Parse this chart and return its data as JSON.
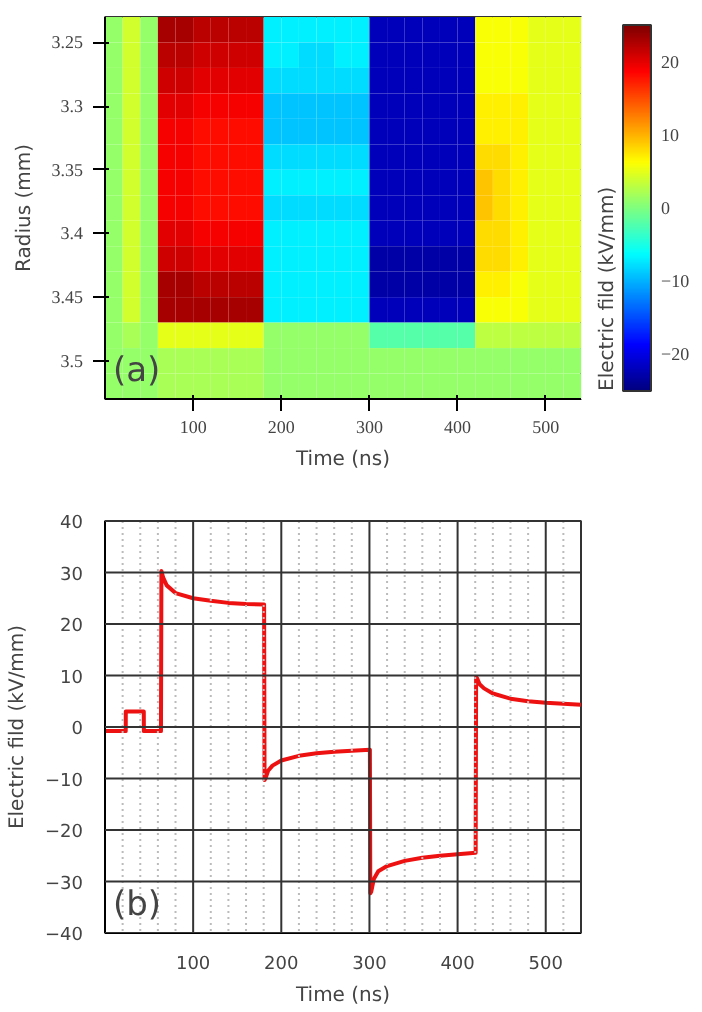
{
  "chart_data": [
    {
      "type": "heatmap",
      "xlabel": "Time (ns)",
      "ylabel": "Radius (mm)",
      "clabel": "Electric fild (kV/mm)",
      "x": [
        10,
        30,
        50,
        70,
        90,
        110,
        130,
        150,
        170,
        190,
        210,
        230,
        250,
        270,
        290,
        310,
        330,
        350,
        370,
        390,
        410,
        430,
        450,
        470,
        490,
        510,
        530
      ],
      "y": [
        3.24,
        3.26,
        3.28,
        3.3,
        3.32,
        3.34,
        3.36,
        3.38,
        3.4,
        3.42,
        3.44,
        3.46,
        3.48,
        3.5,
        3.52
      ],
      "xlim": [
        0,
        540
      ],
      "ylim": [
        3.53,
        3.23
      ],
      "xticks": [
        100,
        200,
        300,
        400,
        500
      ],
      "yticks": [
        3.25,
        3.3,
        3.35,
        3.4,
        3.45,
        3.5
      ],
      "clim": [
        -25,
        25
      ],
      "cticks": [
        -20,
        -10,
        0,
        10,
        20
      ],
      "cells": [
        [
          1,
          4,
          1,
          23,
          23,
          22,
          22,
          22,
          22,
          -7,
          -7,
          -7,
          -7,
          -7,
          -7,
          -22,
          -22,
          -22,
          -22,
          -22,
          -22,
          6,
          6,
          6,
          5,
          5,
          5
        ],
        [
          1,
          4,
          1,
          22,
          22,
          21,
          21,
          21,
          21,
          -7,
          -7,
          -8,
          -8,
          -7,
          -7,
          -22,
          -22,
          -22,
          -22,
          -22,
          -22,
          6,
          6,
          6,
          5,
          5,
          5
        ],
        [
          1,
          4,
          1,
          21,
          21,
          20,
          20,
          20,
          20,
          -8,
          -8,
          -8,
          -8,
          -8,
          -8,
          -22,
          -22,
          -22,
          -22,
          -22,
          -22,
          6,
          6,
          6,
          5,
          5,
          5
        ],
        [
          1,
          4,
          1,
          20,
          20,
          19,
          19,
          19,
          19,
          -9,
          -9,
          -9,
          -9,
          -9,
          -9,
          -22,
          -22,
          -22,
          -22,
          -22,
          -22,
          7,
          7,
          7,
          5,
          5,
          5
        ],
        [
          1,
          4,
          1,
          19,
          19,
          18,
          18,
          18,
          18,
          -9,
          -9,
          -9,
          -9,
          -9,
          -9,
          -22,
          -22,
          -22,
          -22,
          -22,
          -22,
          7,
          7,
          7,
          5,
          5,
          5
        ],
        [
          1,
          4,
          1,
          19,
          19,
          18,
          18,
          18,
          18,
          -8,
          -8,
          -8,
          -8,
          -8,
          -8,
          -22,
          -22,
          -22,
          -22,
          -22,
          -22,
          8,
          8,
          7,
          5,
          5,
          5
        ],
        [
          1,
          4,
          1,
          19,
          19,
          18,
          18,
          18,
          18,
          -7,
          -7,
          -7,
          -7,
          -7,
          -7,
          -22,
          -22,
          -22,
          -22,
          -22,
          -22,
          9,
          8,
          7,
          5,
          5,
          5
        ],
        [
          1,
          4,
          1,
          19,
          19,
          18,
          18,
          18,
          18,
          -8,
          -8,
          -8,
          -8,
          -8,
          -8,
          -22,
          -22,
          -22,
          -22,
          -22,
          -22,
          9,
          8,
          7,
          5,
          5,
          5
        ],
        [
          1,
          4,
          1,
          20,
          20,
          19,
          19,
          19,
          19,
          -7,
          -7,
          -7,
          -7,
          -7,
          -7,
          -22,
          -22,
          -22,
          -22,
          -22,
          -22,
          8,
          8,
          7,
          5,
          5,
          5
        ],
        [
          1,
          4,
          1,
          21,
          21,
          20,
          20,
          20,
          20,
          -7,
          -7,
          -7,
          -7,
          -7,
          -7,
          -23,
          -23,
          -23,
          -23,
          -23,
          -23,
          8,
          8,
          7,
          5,
          5,
          5
        ],
        [
          1,
          4,
          1,
          23,
          23,
          22,
          22,
          22,
          22,
          -7,
          -7,
          -7,
          -7,
          -7,
          -7,
          -23,
          -23,
          -23,
          -23,
          -23,
          -23,
          7,
          7,
          6,
          5,
          5,
          5
        ],
        [
          1,
          4,
          1,
          23,
          23,
          23,
          23,
          23,
          23,
          -7,
          -7,
          -7,
          -7,
          -7,
          -7,
          -22,
          -22,
          -22,
          -22,
          -22,
          -22,
          6,
          6,
          6,
          5,
          5,
          5
        ],
        [
          1,
          2,
          1,
          5,
          5,
          5,
          5,
          5,
          5,
          1,
          1,
          1,
          1,
          1,
          1,
          -2,
          -2,
          -2,
          -2,
          -2,
          -2,
          3,
          3,
          3,
          3,
          3,
          3
        ],
        [
          1,
          1,
          1,
          2,
          2,
          2,
          2,
          2,
          2,
          1,
          1,
          1,
          1,
          1,
          1,
          1,
          1,
          1,
          1,
          1,
          1,
          1,
          1,
          1,
          1,
          1,
          1
        ],
        [
          1,
          1,
          1,
          2,
          2,
          2,
          2,
          2,
          2,
          1,
          1,
          1,
          1,
          1,
          1,
          1,
          1,
          1,
          1,
          1,
          1,
          1,
          1,
          1,
          1,
          1,
          1
        ]
      ],
      "annotations": [
        "(a)"
      ]
    },
    {
      "type": "line",
      "xlabel": "Time (ns)",
      "ylabel": "Electric fild (kV/mm)",
      "xlim": [
        0,
        540
      ],
      "ylim": [
        -40,
        40
      ],
      "grid": true,
      "xticks": [
        {
          "value": 20,
          "label": null
        },
        {
          "value": 40,
          "label": null
        },
        {
          "value": 60,
          "label": null
        },
        {
          "value": 80,
          "label": null
        },
        100,
        {
          "value": 120,
          "label": null
        },
        {
          "value": 140,
          "label": null
        },
        {
          "value": 160,
          "label": null
        },
        {
          "value": 180,
          "label": null
        },
        200,
        {
          "value": 220,
          "label": null
        },
        {
          "value": 240,
          "label": null
        },
        {
          "value": 260,
          "label": null
        },
        {
          "value": 280,
          "label": null
        },
        300,
        {
          "value": 320,
          "label": null
        },
        {
          "value": 340,
          "label": null
        },
        {
          "value": 360,
          "label": null
        },
        {
          "value": 380,
          "label": null
        },
        400,
        {
          "value": 420,
          "label": null
        },
        {
          "value": 440,
          "label": null
        },
        {
          "value": 460,
          "label": null
        },
        {
          "value": 480,
          "label": null
        },
        500,
        {
          "value": 520,
          "label": null
        }
      ],
      "yticks": [
        -40,
        -30,
        -20,
        -10,
        0,
        10,
        20,
        30,
        40
      ],
      "series": [
        {
          "color": "#ee1111",
          "x": [
            0,
            23.5,
            23.6,
            44,
            44.1,
            63.5,
            64,
            66,
            70,
            80,
            100,
            120,
            140,
            160,
            180.5,
            181,
            182,
            185,
            190,
            200,
            220,
            240,
            260,
            280,
            300.5,
            301,
            302,
            305,
            310,
            320,
            340,
            360,
            380,
            400,
            420.5,
            421,
            422,
            425,
            430,
            440,
            460,
            480,
            500,
            520,
            540
          ],
          "values": [
            -0.8,
            -0.8,
            3,
            3,
            -0.8,
            -0.8,
            30.3,
            29,
            27.5,
            26,
            25,
            24.5,
            24.1,
            23.9,
            23.8,
            -10.3,
            -10,
            -8.5,
            -7.5,
            -6.5,
            -5.6,
            -5.1,
            -4.8,
            -4.6,
            -4.4,
            -32.3,
            -32,
            -29.5,
            -28,
            -27,
            -26,
            -25.4,
            -25,
            -24.7,
            -24.4,
            9.7,
            9.5,
            8.3,
            7.5,
            6.5,
            5.5,
            5,
            4.7,
            4.5,
            4.3
          ]
        }
      ],
      "annotations": [
        "(b)"
      ]
    }
  ]
}
